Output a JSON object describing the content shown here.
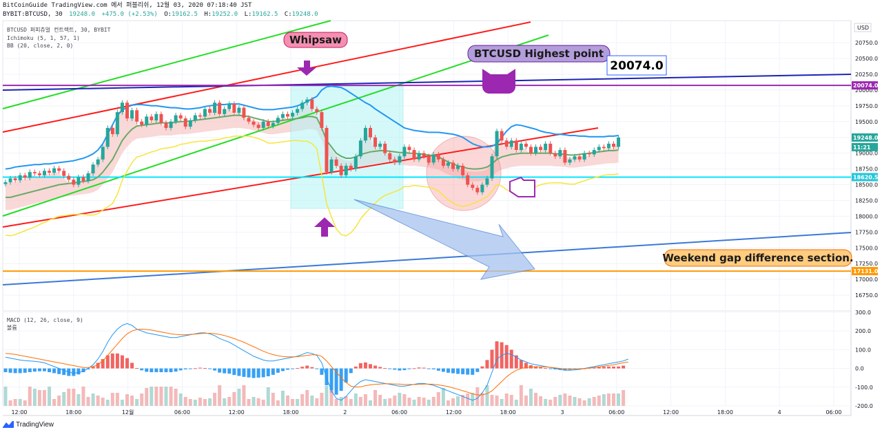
{
  "header": {
    "line1": "BitCoinGuide TradingView.com 에서 퍼블리쉬, 12월 03, 2020 07:18:40 JST",
    "symbol": "BYBIT:BTCUSD, 30",
    "price": "19248.0",
    "change": "+475.0 (+2.53%)",
    "o_label": "O:",
    "o": "19162.5",
    "h_label": "H:",
    "h": "19252.0",
    "l_label": "L:",
    "l": "19162.5",
    "c_label": "C:",
    "c": "19248.0"
  },
  "indicators": {
    "title": "BTCUSD 퍼피츄얼 컨트랙트, 30, BYBIT",
    "ichimoku": "Ichimoku (5, 1, 57, 1)",
    "bb": "BB (20, close, 2, 0)",
    "macd": "MACD (12, 26, close, 9)",
    "volume": "볼륨"
  },
  "currency": "USD",
  "annotations": {
    "whipsaw": "Whipsaw",
    "highest": "BTCUSD Highest point",
    "highest_value": "20074.0",
    "weekend": "Weekend gap difference section."
  },
  "price_badges": {
    "top": "20074.0",
    "current": "19248.0",
    "countdown": "11:21",
    "support": "18620.5",
    "gap": "17131.0"
  },
  "footer": {
    "brand": "TradingView"
  },
  "colors": {
    "up": "#26a69a",
    "down": "#ef5350",
    "bb": "#2196f3",
    "cloud": "#f7c7c7",
    "purple": "#9c27b0",
    "navy": "#1a23b4",
    "cyan": "#00e5ff",
    "orange": "#ff9800"
  },
  "chart_data": [
    {
      "type": "line",
      "title": "BTCUSD 퍼피츄얼 컨트랙트, 30, BYBIT",
      "ylim": [
        16500,
        21100
      ],
      "y_ticks": [
        20750,
        20500,
        20250,
        20000,
        19750,
        19500,
        19250,
        19000,
        18750,
        18500,
        18250,
        18000,
        17750,
        17500,
        17250,
        17000,
        16750
      ],
      "x_tick_labels": [
        "12:00",
        "18:00",
        "12월",
        "06:00",
        "12:00",
        "18:00",
        "2",
        "06:00",
        "12:00",
        "18:00",
        "3",
        "06:00",
        "12:00",
        "18:00",
        "4",
        "06:00"
      ],
      "close": [
        18540,
        18600,
        18570,
        18650,
        18610,
        18700,
        18680,
        18650,
        18720,
        18690,
        18760,
        18720,
        18640,
        18580,
        18500,
        18620,
        18560,
        18680,
        18820,
        18900,
        19100,
        19400,
        19300,
        19650,
        19800,
        19550,
        19680,
        19500,
        19450,
        19580,
        19520,
        19620,
        19480,
        19400,
        19500,
        19600,
        19550,
        19420,
        19520,
        19600,
        19580,
        19700,
        19640,
        19800,
        19620,
        19700,
        19780,
        19640,
        19720,
        19560,
        19500,
        19450,
        19400,
        19500,
        19430,
        19480,
        19560,
        19620,
        19580,
        19640,
        19700,
        19800,
        19850,
        19700,
        19650,
        19400,
        18700,
        18900,
        18800,
        18650,
        18800,
        18750,
        18950,
        19200,
        19400,
        19250,
        19100,
        19150,
        19000,
        18900,
        18850,
        18950,
        19100,
        19050,
        18900,
        19000,
        18950,
        18850,
        18980,
        18900,
        18800,
        18850,
        18750,
        18800,
        18650,
        18500,
        18450,
        18380,
        18500,
        18600,
        18950,
        19350,
        19200,
        19100,
        19200,
        19050,
        19150,
        19100,
        19000,
        19100,
        19050,
        19150,
        19000,
        18950,
        19050,
        18850,
        18900,
        18950,
        18900,
        19000,
        18980,
        19050,
        19100,
        19080,
        19150,
        19100,
        19248
      ],
      "series": [
        {
          "name": "Ichimoku (5, 1, 57, 1)",
          "values": [
            18300,
            18300,
            18320,
            18340,
            18360,
            18380,
            18400,
            18420,
            18440,
            18460,
            18480,
            18500,
            18510,
            18520,
            18530,
            18540,
            18550,
            18560,
            18580,
            18620,
            18700,
            18800,
            18900,
            19050,
            19200,
            19300,
            19380,
            19430,
            19440,
            19450,
            19460,
            19470,
            19480,
            19480,
            19480,
            19490,
            19500,
            19500,
            19510,
            19520,
            19530,
            19540,
            19550,
            19560,
            19570,
            19580,
            19590,
            19600,
            19600,
            19590,
            19580,
            19560,
            19540,
            19520,
            19500,
            19500,
            19510,
            19520,
            19530,
            19540,
            19550,
            19560,
            19580,
            19580,
            19560,
            19400,
            19200,
            19100,
            19000,
            18950,
            18920,
            18920,
            18940,
            18980,
            19000,
            19020,
            19030,
            19040,
            19040,
            19030,
            19020,
            19010,
            19010,
            19000,
            19000,
            18990,
            18980,
            18970,
            18960,
            18940,
            18900,
            18860,
            18830,
            18800,
            18780,
            18760,
            18750,
            18750,
            18760,
            18780,
            18830,
            18900,
            18940,
            18960,
            18980,
            18990,
            19000,
            19000,
            19000,
            19000,
            19000,
            19000,
            19000,
            18990,
            18990,
            18980,
            18970,
            18970,
            18980,
            18990,
            19000,
            19010,
            19020,
            19030,
            19040,
            19040,
            19050
          ]
        },
        {
          "name": "BB (20, close, 2, 0)",
          "values": [
            18750,
            18760,
            18780,
            18790,
            18800,
            18810,
            18820,
            18820,
            18830,
            18830,
            18840,
            18850,
            18860,
            18870,
            18880,
            18900,
            18920,
            18950,
            18990,
            19050,
            19150,
            19300,
            19450,
            19600,
            19680,
            19730,
            19760,
            19770,
            19770,
            19760,
            19750,
            19750,
            19740,
            19730,
            19720,
            19720,
            19710,
            19700,
            19700,
            19710,
            19720,
            19740,
            19750,
            19760,
            19770,
            19770,
            19780,
            19780,
            19780,
            19760,
            19740,
            19720,
            19700,
            19690,
            19690,
            19690,
            19700,
            19710,
            19720,
            19730,
            19750,
            19780,
            19820,
            19860,
            19900,
            20000,
            20050,
            20060,
            20050,
            20040,
            20000,
            19950,
            19900,
            19850,
            19800,
            19760,
            19700,
            19650,
            19600,
            19550,
            19500,
            19450,
            19400,
            19380,
            19360,
            19350,
            19340,
            19330,
            19330,
            19330,
            19320,
            19310,
            19300,
            19280,
            19250,
            19200,
            19150,
            19120,
            19100,
            19100,
            19110,
            19150,
            19250,
            19350,
            19420,
            19450,
            19440,
            19420,
            19400,
            19380,
            19350,
            19330,
            19320,
            19300,
            19300,
            19290,
            19280,
            19280,
            19270,
            19270,
            19260,
            19260,
            19260,
            19260,
            19270,
            19270,
            19280
          ]
        }
      ]
    },
    {
      "type": "line",
      "title": "MACD (12, 26, close, 9)",
      "ylim": [
        -200,
        300
      ],
      "y_ticks": [
        300,
        200,
        100,
        0,
        -100,
        -200
      ],
      "series": [
        {
          "name": "MACD",
          "values": [
            60,
            55,
            50,
            45,
            42,
            40,
            38,
            35,
            30,
            20,
            10,
            0,
            -10,
            -20,
            -25,
            -22,
            -15,
            0,
            20,
            50,
            90,
            140,
            180,
            210,
            230,
            240,
            230,
            210,
            200,
            190,
            185,
            180,
            175,
            170,
            165,
            165,
            170,
            175,
            180,
            185,
            190,
            190,
            185,
            175,
            160,
            150,
            140,
            125,
            110,
            95,
            80,
            65,
            55,
            45,
            40,
            40,
            45,
            50,
            55,
            60,
            65,
            75,
            85,
            80,
            70,
            30,
            -50,
            -120,
            -160,
            -170,
            -150,
            -120,
            -90,
            -70,
            -60,
            -65,
            -70,
            -75,
            -80,
            -85,
            -90,
            -95,
            -95,
            -90,
            -85,
            -80,
            -80,
            -85,
            -90,
            -100,
            -110,
            -120,
            -130,
            -140,
            -150,
            -160,
            -170,
            -160,
            -130,
            -90,
            -20,
            50,
            70,
            80,
            75,
            60,
            45,
            35,
            25,
            20,
            15,
            10,
            5,
            0,
            -5,
            -10,
            -10,
            -8,
            -5,
            0,
            5,
            10,
            15,
            20,
            25,
            30,
            35,
            40,
            50
          ]
        },
        {
          "name": "Signal",
          "values": [
            80,
            78,
            75,
            70,
            65,
            60,
            55,
            50,
            45,
            40,
            35,
            30,
            25,
            20,
            15,
            10,
            5,
            5,
            10,
            20,
            40,
            70,
            100,
            130,
            160,
            185,
            200,
            208,
            210,
            208,
            205,
            200,
            195,
            190,
            185,
            182,
            180,
            180,
            182,
            184,
            186,
            188,
            188,
            186,
            182,
            176,
            168,
            160,
            150,
            140,
            128,
            116,
            104,
            92,
            82,
            74,
            68,
            64,
            62,
            62,
            63,
            66,
            70,
            73,
            73,
            64,
            40,
            10,
            -20,
            -50,
            -75,
            -95,
            -100,
            -98,
            -92,
            -88,
            -85,
            -83,
            -82,
            -82,
            -83,
            -84,
            -86,
            -86,
            -86,
            -85,
            -84,
            -84,
            -85,
            -88,
            -92,
            -97,
            -104,
            -111,
            -119,
            -127,
            -136,
            -141,
            -141,
            -135,
            -120,
            -95,
            -70,
            -45,
            -25,
            -10,
            0,
            5,
            8,
            9,
            9,
            8,
            6,
            3,
            0,
            -2,
            -3,
            -3,
            -2,
            0,
            2,
            5,
            8,
            12,
            16,
            20,
            25,
            30,
            35
          ]
        },
        {
          "name": "Histogram",
          "values": [
            -20,
            -23,
            -25,
            -25,
            -23,
            -20,
            -17,
            -15,
            -15,
            -20,
            -25,
            -30,
            -35,
            -40,
            -40,
            -32,
            -20,
            -5,
            10,
            30,
            50,
            70,
            80,
            80,
            70,
            55,
            30,
            2,
            -10,
            -18,
            -20,
            -20,
            -20,
            -20,
            -20,
            -17,
            -10,
            -5,
            -2,
            1,
            4,
            2,
            -3,
            -11,
            -22,
            -26,
            -28,
            -35,
            -40,
            -45,
            -48,
            -51,
            -49,
            -47,
            -42,
            -34,
            -23,
            -14,
            -7,
            -2,
            2,
            9,
            15,
            7,
            -3,
            -34,
            -90,
            -130,
            -140,
            -120,
            -75,
            -25,
            10,
            28,
            32,
            23,
            15,
            8,
            2,
            -3,
            -7,
            -11,
            -9,
            -4,
            1,
            5,
            4,
            -1,
            -5,
            -12,
            -18,
            -23,
            -26,
            -29,
            -31,
            -33,
            -34,
            -19,
            11,
            45,
            100,
            145,
            140,
            125,
            100,
            70,
            45,
            30,
            17,
            11,
            6,
            2,
            -1,
            -5,
            -8,
            -10,
            -7,
            -5,
            -3,
            0,
            3,
            5,
            7,
            9,
            10,
            10,
            10,
            15
          ]
        }
      ]
    }
  ]
}
